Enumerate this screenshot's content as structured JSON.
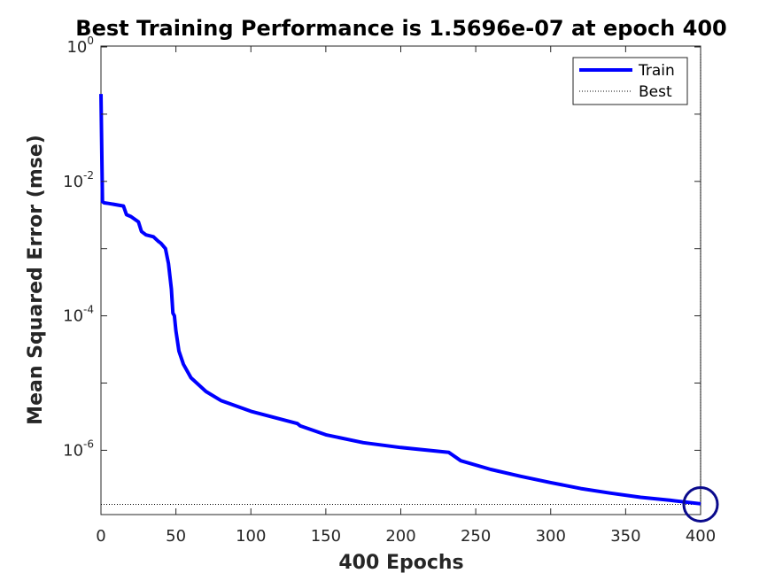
{
  "chart_data": {
    "type": "line",
    "title": "Best Training Performance is 1.5696e-07 at epoch 400",
    "xlabel": "400 Epochs",
    "ylabel": "Mean Squared Error  (mse)",
    "xlim": [
      0,
      400
    ],
    "ylim": [
      1e-07,
      1
    ],
    "yscale": "log",
    "xticks": [
      0,
      50,
      100,
      150,
      200,
      250,
      300,
      350,
      400
    ],
    "yticks": [
      {
        "base": "10",
        "exp": "0",
        "value": 1
      },
      {
        "base": "10",
        "exp": "-2",
        "value": 0.01
      },
      {
        "base": "10",
        "exp": "-4",
        "value": 0.0001
      },
      {
        "base": "10",
        "exp": "-6",
        "value": 1e-06
      }
    ],
    "legend_position": "top-right",
    "series": [
      {
        "name": "Train",
        "color": "#0000ff",
        "x": [
          0,
          1,
          2,
          5,
          10,
          15,
          17,
          20,
          25,
          27,
          30,
          35,
          38,
          40,
          43,
          45,
          47,
          48,
          49,
          50,
          52,
          55,
          60,
          70,
          80,
          100,
          120,
          131,
          133,
          150,
          175,
          200,
          232,
          240,
          260,
          280,
          300,
          320,
          340,
          360,
          380,
          400
        ],
        "y": [
          0.2,
          0.005,
          0.0048,
          0.0047,
          0.0045,
          0.0043,
          0.0032,
          0.003,
          0.0025,
          0.0018,
          0.0016,
          0.0015,
          0.0013,
          0.0012,
          0.001,
          0.0006,
          0.00025,
          0.00011,
          0.0001,
          6e-05,
          3e-05,
          1.9e-05,
          1.2e-05,
          7.5e-06,
          5.5e-06,
          3.8e-06,
          2.9e-06,
          2.5e-06,
          2.3e-06,
          1.7e-06,
          1.3e-06,
          1.1e-06,
          9.3e-07,
          7e-07,
          5.2e-07,
          4.1e-07,
          3.3e-07,
          2.7e-07,
          2.3e-07,
          2e-07,
          1.8e-07,
          1.6e-07
        ]
      },
      {
        "name": "Best",
        "color": "#000000",
        "style": "dotted",
        "hline": 1.5696e-07,
        "vline": 400
      }
    ],
    "best_point": {
      "x": 400,
      "y": 1.5696e-07
    }
  }
}
